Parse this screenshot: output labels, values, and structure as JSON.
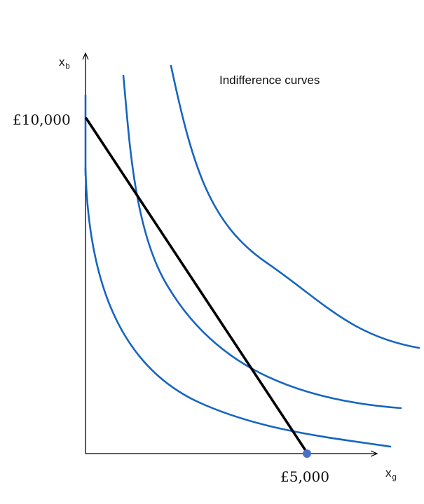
{
  "title": "Indifference curves",
  "axes": {
    "y_label_main": "x",
    "y_label_sub": "b",
    "x_label_main": "x",
    "x_label_sub": "g"
  },
  "labels": {
    "y_intercept": "£10,000",
    "x_intercept": "£5,000"
  },
  "colors": {
    "curves": "#1565c0",
    "budget_line": "#000000",
    "axes": "#000000",
    "point": "#4a72c4"
  }
}
